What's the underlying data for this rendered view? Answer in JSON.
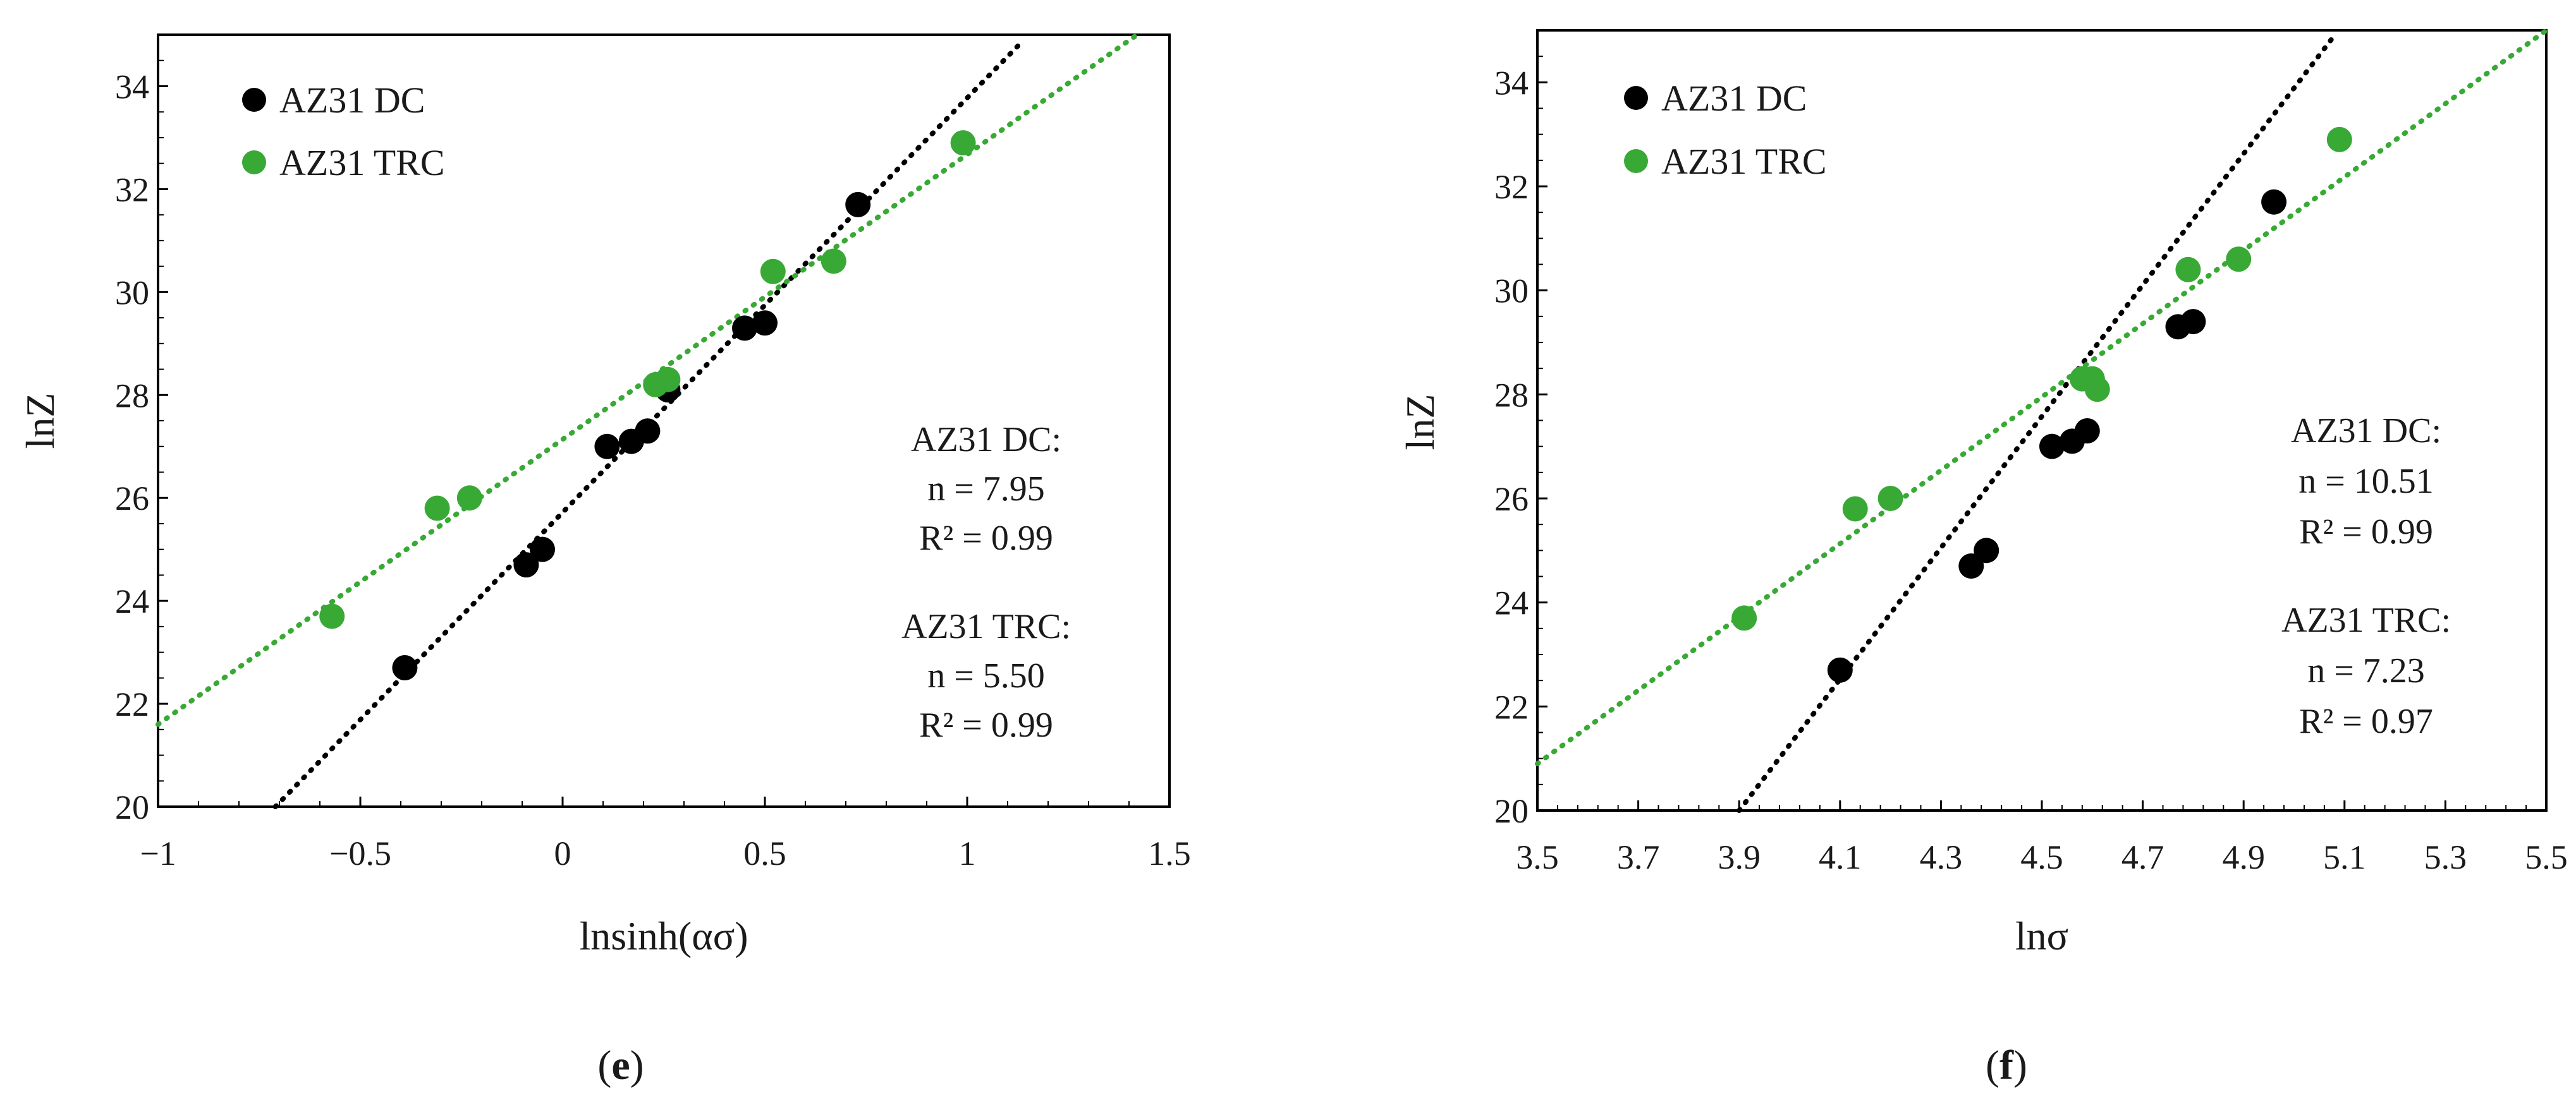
{
  "chart_data": [
    {
      "panel_label": "e",
      "type": "scatter",
      "xlabel": "lnsinh(ασ)",
      "ylabel": "lnZ",
      "xlim": [
        -1,
        1.5
      ],
      "ylim": [
        20,
        35
      ],
      "xticks": [
        -1,
        -0.5,
        0,
        0.5,
        1,
        1.5
      ],
      "xtick_labels": [
        "−1",
        "−0.5",
        "0",
        "0.5",
        "1",
        "1.5"
      ],
      "yticks": [
        20,
        22,
        24,
        26,
        28,
        30,
        32,
        34
      ],
      "ytick_labels": [
        "20",
        "22",
        "24",
        "26",
        "28",
        "30",
        "32",
        "34"
      ],
      "legend_position": "top-left",
      "series": [
        {
          "name": "AZ31 DC",
          "color": "#000000",
          "x": [
            -0.39,
            -0.09,
            -0.05,
            0.11,
            0.17,
            0.21,
            0.26,
            0.45,
            0.5,
            0.73
          ],
          "y": [
            22.7,
            24.7,
            25.0,
            27.0,
            27.1,
            27.3,
            28.1,
            29.3,
            29.4,
            31.7
          ],
          "fit": [
            [
              -0.71,
              20.0
            ],
            [
              1.14,
              34.9
            ]
          ]
        },
        {
          "name": "AZ31 TRC",
          "color": "#39a935",
          "x": [
            -0.57,
            -0.31,
            -0.23,
            0.23,
            0.26,
            0.52,
            0.67,
            0.99
          ],
          "y": [
            23.7,
            25.8,
            26.0,
            28.2,
            28.3,
            30.4,
            30.6,
            32.9
          ],
          "fit": [
            [
              -1.0,
              21.6
            ],
            [
              1.42,
              35.0
            ]
          ]
        }
      ],
      "annotations": [
        [
          "AZ31 DC:",
          "n = 7.95",
          "R² = 0.99"
        ],
        [
          "AZ31 TRC:",
          "n = 5.50",
          "R² = 0.99"
        ]
      ]
    },
    {
      "panel_label": "f",
      "type": "scatter",
      "xlabel": "lnσ",
      "ylabel": "lnZ",
      "xlim": [
        3.5,
        5.5
      ],
      "ylim": [
        20,
        35
      ],
      "xticks": [
        3.5,
        3.7,
        3.9,
        4.1,
        4.3,
        4.5,
        4.7,
        4.9,
        5.1,
        5.3,
        5.5
      ],
      "xtick_labels": [
        "3.5",
        "3.7",
        "3.9",
        "4.1",
        "4.3",
        "4.5",
        "4.7",
        "4.9",
        "5.1",
        "5.3",
        "5.5"
      ],
      "yticks": [
        20,
        22,
        24,
        26,
        28,
        30,
        32,
        34
      ],
      "ytick_labels": [
        "20",
        "22",
        "24",
        "26",
        "28",
        "30",
        "32",
        "34"
      ],
      "legend_position": "top-left",
      "series": [
        {
          "name": "AZ31 DC",
          "color": "#000000",
          "x": [
            4.1,
            4.36,
            4.39,
            4.52,
            4.56,
            4.59,
            4.77,
            4.8,
            4.96
          ],
          "y": [
            22.7,
            24.7,
            25.0,
            27.0,
            27.1,
            27.3,
            29.3,
            29.4,
            31.7
          ],
          "fit": [
            [
              3.9,
              20.0
            ],
            [
              5.08,
              34.9
            ]
          ]
        },
        {
          "name": "AZ31 TRC",
          "color": "#39a935",
          "x": [
            3.91,
            4.13,
            4.2,
            4.58,
            4.6,
            4.61,
            4.79,
            4.89,
            5.09
          ],
          "y": [
            23.7,
            25.8,
            26.0,
            28.3,
            28.3,
            28.1,
            30.4,
            30.6,
            32.9
          ],
          "fit": [
            [
              3.5,
              20.9
            ],
            [
              5.5,
              35.0
            ]
          ]
        }
      ],
      "annotations": [
        [
          "AZ31 DC:",
          "n = 10.51",
          "R² = 0.99"
        ],
        [
          "AZ31 TRC:",
          "n = 7.23",
          "R² = 0.97"
        ]
      ]
    }
  ]
}
